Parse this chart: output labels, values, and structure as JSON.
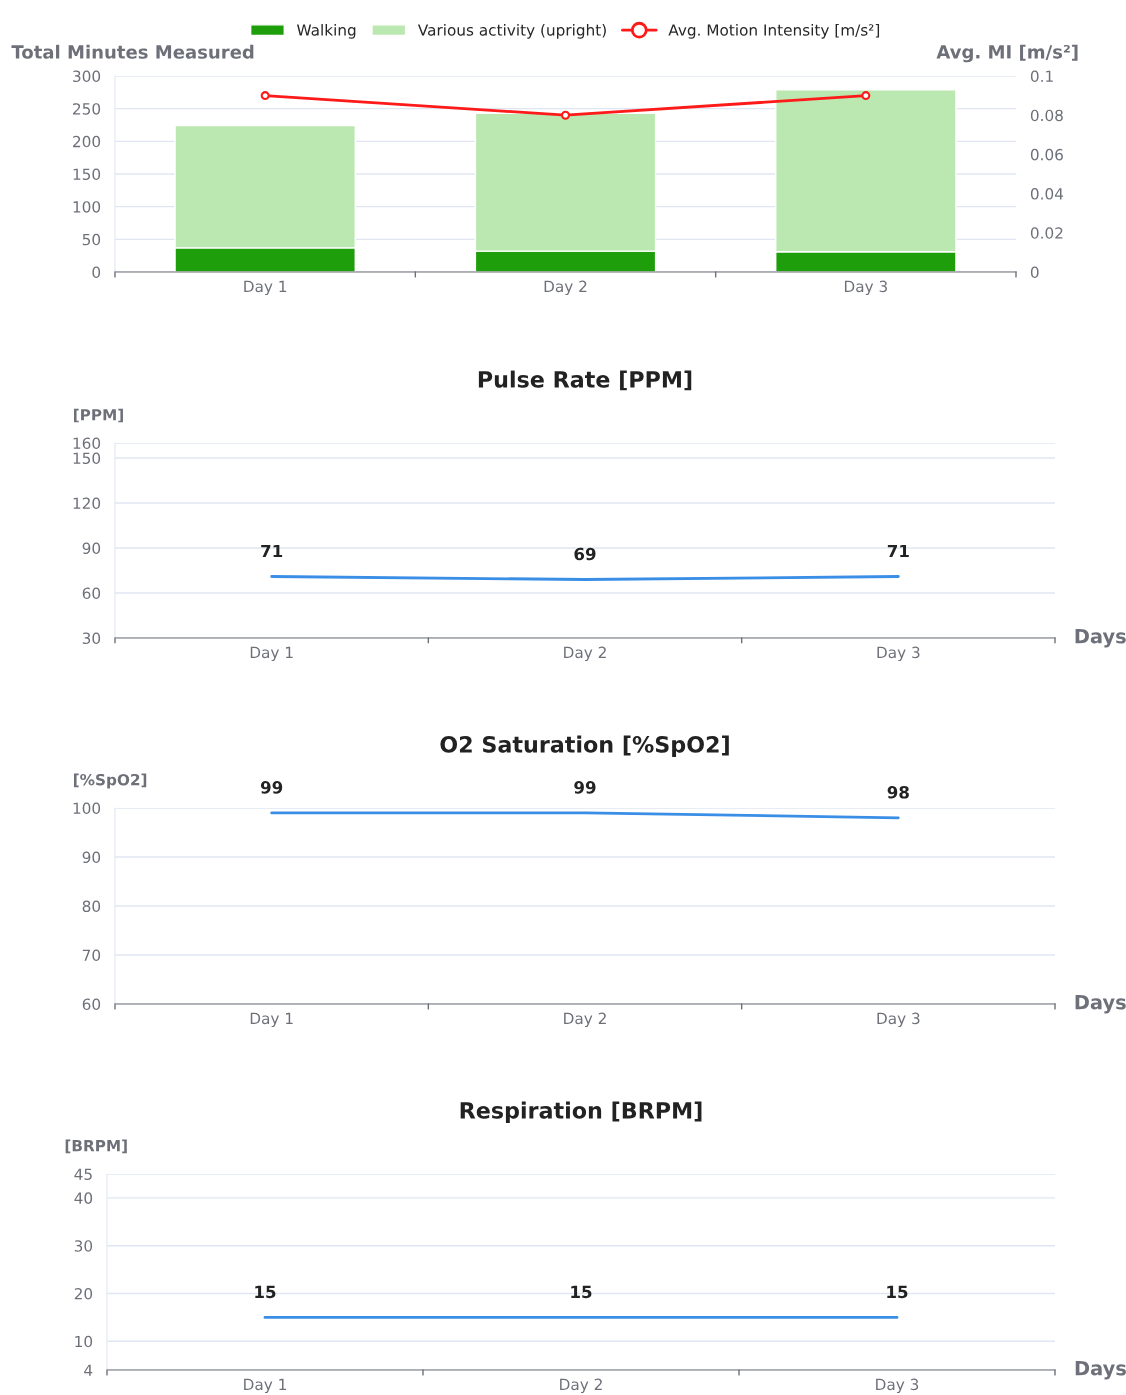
{
  "chart_data": [
    {
      "type": "bar",
      "stacked": true,
      "ylabel": "Total Minutes Measured",
      "y2label": "Avg. MI [m/s²]",
      "categories": [
        "Day 1",
        "Day 2",
        "Day 3"
      ],
      "series": [
        {
          "name": "Walking",
          "color": "#1e9e0a",
          "values": [
            37,
            32,
            31
          ]
        },
        {
          "name": "Various activity (upright)",
          "color": "#bbe8b0",
          "values": [
            187,
            211,
            248
          ]
        },
        {
          "name": "Avg. Motion Intensity [m/s²]",
          "type": "line",
          "axis": "y2",
          "color": "#ff1a1a",
          "marker": "circle",
          "values": [
            0.09,
            0.08,
            0.09
          ]
        }
      ],
      "ylim": [
        0,
        300
      ],
      "yticks": [
        0,
        50,
        100,
        150,
        200,
        250,
        300
      ],
      "y2lim": [
        0,
        0.1
      ],
      "y2ticks": [
        0,
        0.02,
        0.04,
        0.06,
        0.08,
        0.1
      ],
      "grid": "y",
      "legend": "top"
    },
    {
      "type": "line",
      "title": "Pulse Rate [PPM]",
      "ylabel": "[PPM]",
      "xlabel": "Days",
      "categories": [
        "Day 1",
        "Day 2",
        "Day 3"
      ],
      "series": [
        {
          "color": "#3a8ee6",
          "values": [
            71,
            69,
            71
          ]
        }
      ],
      "ylim": [
        30,
        160
      ],
      "yticks": [
        30,
        60,
        90,
        120,
        150,
        160
      ],
      "grid": "y",
      "data_labels": true
    },
    {
      "type": "line",
      "title": "O2 Saturation [%SpO2]",
      "ylabel": "[%SpO2]",
      "xlabel": "Days",
      "categories": [
        "Day 1",
        "Day 2",
        "Day 3"
      ],
      "series": [
        {
          "color": "#3a8ee6",
          "values": [
            99,
            99,
            98
          ]
        }
      ],
      "ylim": [
        60,
        100
      ],
      "yticks": [
        60,
        70,
        80,
        90,
        100
      ],
      "grid": "y",
      "data_labels": true
    },
    {
      "type": "line",
      "title": "Respiration [BRPM]",
      "ylabel": "[BRPM]",
      "xlabel": "Days",
      "categories": [
        "Day 1",
        "Day 2",
        "Day 3"
      ],
      "series": [
        {
          "color": "#3a8ee6",
          "values": [
            15,
            15,
            15
          ]
        }
      ],
      "ylim": [
        4,
        45
      ],
      "yticks": [
        4,
        10,
        20,
        30,
        40,
        45
      ],
      "grid": "y",
      "data_labels": true
    }
  ]
}
